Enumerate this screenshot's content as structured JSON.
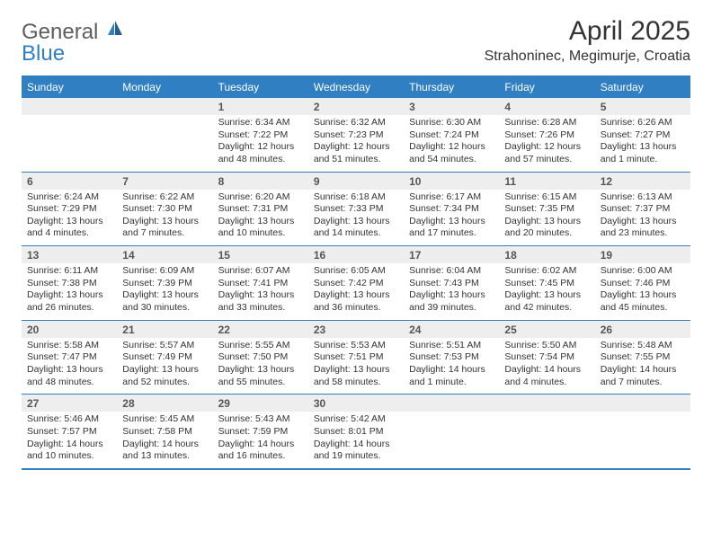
{
  "logo": {
    "part1": "General",
    "part2": "Blue"
  },
  "title": "April 2025",
  "location": "Strahoninec, Megimurje, Croatia",
  "colors": {
    "header_bg": "#2f7fc2",
    "header_text": "#ffffff",
    "daynum_bg": "#eeeeee",
    "daynum_text": "#555555",
    "body_text": "#333333",
    "logo_gray": "#5d5d5d",
    "logo_blue": "#2f7fc2",
    "background": "#ffffff"
  },
  "typography": {
    "title_fontsize": 30,
    "location_fontsize": 16,
    "dow_fontsize": 12,
    "daynum_fontsize": 12,
    "body_fontsize": 10.5
  },
  "days_of_week": [
    "Sunday",
    "Monday",
    "Tuesday",
    "Wednesday",
    "Thursday",
    "Friday",
    "Saturday"
  ],
  "weeks": [
    [
      null,
      null,
      {
        "n": "1",
        "sr": "Sunrise: 6:34 AM",
        "ss": "Sunset: 7:22 PM",
        "dl": "Daylight: 12 hours and 48 minutes."
      },
      {
        "n": "2",
        "sr": "Sunrise: 6:32 AM",
        "ss": "Sunset: 7:23 PM",
        "dl": "Daylight: 12 hours and 51 minutes."
      },
      {
        "n": "3",
        "sr": "Sunrise: 6:30 AM",
        "ss": "Sunset: 7:24 PM",
        "dl": "Daylight: 12 hours and 54 minutes."
      },
      {
        "n": "4",
        "sr": "Sunrise: 6:28 AM",
        "ss": "Sunset: 7:26 PM",
        "dl": "Daylight: 12 hours and 57 minutes."
      },
      {
        "n": "5",
        "sr": "Sunrise: 6:26 AM",
        "ss": "Sunset: 7:27 PM",
        "dl": "Daylight: 13 hours and 1 minute."
      }
    ],
    [
      {
        "n": "6",
        "sr": "Sunrise: 6:24 AM",
        "ss": "Sunset: 7:29 PM",
        "dl": "Daylight: 13 hours and 4 minutes."
      },
      {
        "n": "7",
        "sr": "Sunrise: 6:22 AM",
        "ss": "Sunset: 7:30 PM",
        "dl": "Daylight: 13 hours and 7 minutes."
      },
      {
        "n": "8",
        "sr": "Sunrise: 6:20 AM",
        "ss": "Sunset: 7:31 PM",
        "dl": "Daylight: 13 hours and 10 minutes."
      },
      {
        "n": "9",
        "sr": "Sunrise: 6:18 AM",
        "ss": "Sunset: 7:33 PM",
        "dl": "Daylight: 13 hours and 14 minutes."
      },
      {
        "n": "10",
        "sr": "Sunrise: 6:17 AM",
        "ss": "Sunset: 7:34 PM",
        "dl": "Daylight: 13 hours and 17 minutes."
      },
      {
        "n": "11",
        "sr": "Sunrise: 6:15 AM",
        "ss": "Sunset: 7:35 PM",
        "dl": "Daylight: 13 hours and 20 minutes."
      },
      {
        "n": "12",
        "sr": "Sunrise: 6:13 AM",
        "ss": "Sunset: 7:37 PM",
        "dl": "Daylight: 13 hours and 23 minutes."
      }
    ],
    [
      {
        "n": "13",
        "sr": "Sunrise: 6:11 AM",
        "ss": "Sunset: 7:38 PM",
        "dl": "Daylight: 13 hours and 26 minutes."
      },
      {
        "n": "14",
        "sr": "Sunrise: 6:09 AM",
        "ss": "Sunset: 7:39 PM",
        "dl": "Daylight: 13 hours and 30 minutes."
      },
      {
        "n": "15",
        "sr": "Sunrise: 6:07 AM",
        "ss": "Sunset: 7:41 PM",
        "dl": "Daylight: 13 hours and 33 minutes."
      },
      {
        "n": "16",
        "sr": "Sunrise: 6:05 AM",
        "ss": "Sunset: 7:42 PM",
        "dl": "Daylight: 13 hours and 36 minutes."
      },
      {
        "n": "17",
        "sr": "Sunrise: 6:04 AM",
        "ss": "Sunset: 7:43 PM",
        "dl": "Daylight: 13 hours and 39 minutes."
      },
      {
        "n": "18",
        "sr": "Sunrise: 6:02 AM",
        "ss": "Sunset: 7:45 PM",
        "dl": "Daylight: 13 hours and 42 minutes."
      },
      {
        "n": "19",
        "sr": "Sunrise: 6:00 AM",
        "ss": "Sunset: 7:46 PM",
        "dl": "Daylight: 13 hours and 45 minutes."
      }
    ],
    [
      {
        "n": "20",
        "sr": "Sunrise: 5:58 AM",
        "ss": "Sunset: 7:47 PM",
        "dl": "Daylight: 13 hours and 48 minutes."
      },
      {
        "n": "21",
        "sr": "Sunrise: 5:57 AM",
        "ss": "Sunset: 7:49 PM",
        "dl": "Daylight: 13 hours and 52 minutes."
      },
      {
        "n": "22",
        "sr": "Sunrise: 5:55 AM",
        "ss": "Sunset: 7:50 PM",
        "dl": "Daylight: 13 hours and 55 minutes."
      },
      {
        "n": "23",
        "sr": "Sunrise: 5:53 AM",
        "ss": "Sunset: 7:51 PM",
        "dl": "Daylight: 13 hours and 58 minutes."
      },
      {
        "n": "24",
        "sr": "Sunrise: 5:51 AM",
        "ss": "Sunset: 7:53 PM",
        "dl": "Daylight: 14 hours and 1 minute."
      },
      {
        "n": "25",
        "sr": "Sunrise: 5:50 AM",
        "ss": "Sunset: 7:54 PM",
        "dl": "Daylight: 14 hours and 4 minutes."
      },
      {
        "n": "26",
        "sr": "Sunrise: 5:48 AM",
        "ss": "Sunset: 7:55 PM",
        "dl": "Daylight: 14 hours and 7 minutes."
      }
    ],
    [
      {
        "n": "27",
        "sr": "Sunrise: 5:46 AM",
        "ss": "Sunset: 7:57 PM",
        "dl": "Daylight: 14 hours and 10 minutes."
      },
      {
        "n": "28",
        "sr": "Sunrise: 5:45 AM",
        "ss": "Sunset: 7:58 PM",
        "dl": "Daylight: 14 hours and 13 minutes."
      },
      {
        "n": "29",
        "sr": "Sunrise: 5:43 AM",
        "ss": "Sunset: 7:59 PM",
        "dl": "Daylight: 14 hours and 16 minutes."
      },
      {
        "n": "30",
        "sr": "Sunrise: 5:42 AM",
        "ss": "Sunset: 8:01 PM",
        "dl": "Daylight: 14 hours and 19 minutes."
      },
      null,
      null,
      null
    ]
  ]
}
